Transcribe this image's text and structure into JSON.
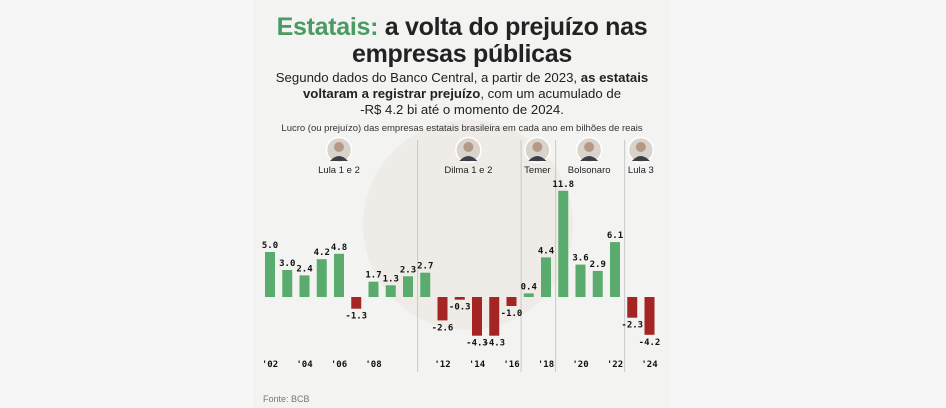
{
  "header": {
    "title_highlight": "Estatais:",
    "title_rest": " a volta do prejuízo nas",
    "title_line2": "empresas públicas",
    "subtitle_line1_a": "Segundo dados do Banco Central, a partir de 2023, ",
    "subtitle_line1_b": "as estatais",
    "subtitle_line2_a": "voltaram a registrar prejuízo",
    "subtitle_line2_b": ", com um acumulado de",
    "subtitle_line3": "-R$ 4.2 bi até o momento de 2024.",
    "caption": "Lucro (ou prejuízo) das empresas estatais brasileira em cada ano em bilhões de reais"
  },
  "footer": {
    "source": "Fonte: BCB"
  },
  "eras": [
    {
      "label": "Lula 1 e 2",
      "portrait": "lula-portrait-icon",
      "years": [
        2002,
        2010
      ]
    },
    {
      "label": "Dilma 1 e 2",
      "portrait": "dilma-portrait-icon",
      "years": [
        2011,
        2016
      ]
    },
    {
      "label": "Temer",
      "portrait": "temer-portrait-icon",
      "years": [
        2017,
        2018
      ]
    },
    {
      "label": "Bolsonaro",
      "portrait": "bolsonaro-portrait-icon",
      "years": [
        2019,
        2022
      ]
    },
    {
      "label": "Lula 3",
      "portrait": "lula-portrait-icon",
      "years": [
        2023,
        2024
      ]
    }
  ],
  "colors": {
    "positive": "#5aab6e",
    "negative": "#a52424",
    "divider": "#c8c8c8",
    "accent": "#4a9a63"
  },
  "chart_data": {
    "type": "bar",
    "title": "Estatais: a volta do prejuízo nas empresas públicas",
    "ylabel": "Lucro (ou prejuízo) das empresas estatais brasileira em cada ano em bilhões de reais",
    "categories": [
      2002,
      2003,
      2004,
      2005,
      2006,
      2007,
      2008,
      2009,
      2010,
      2011,
      2012,
      2013,
      2014,
      2015,
      2016,
      2017,
      2018,
      2019,
      2020,
      2021,
      2022,
      2023,
      2024
    ],
    "values": [
      5.0,
      3.0,
      2.4,
      4.2,
      4.8,
      -1.3,
      1.7,
      1.3,
      2.3,
      2.7,
      -2.6,
      -0.3,
      -4.3,
      -4.3,
      -1.0,
      0.4,
      4.4,
      11.8,
      3.6,
      2.9,
      6.1,
      -2.3,
      -4.2
    ],
    "labels": [
      "5.0",
      "3.0",
      "2.4",
      "4.2",
      "4.8",
      "-1.3",
      "1.7",
      "1.3",
      "2.3",
      "2.7",
      "-2.6",
      "-0.3",
      "-4.3",
      "-4.3",
      "-1.0",
      "0.4",
      "4.4",
      "11.8",
      "3.6",
      "2.9",
      "6.1",
      "-2.3",
      "-4.2"
    ],
    "tick_labels": [
      "'02",
      "'04",
      "'06",
      "'08",
      "'12",
      "'14",
      "'16",
      "'18",
      "'20",
      "'22",
      "'24"
    ],
    "tick_years": [
      2002,
      2004,
      2006,
      2008,
      2012,
      2014,
      2016,
      2018,
      2020,
      2022,
      2024
    ]
  }
}
